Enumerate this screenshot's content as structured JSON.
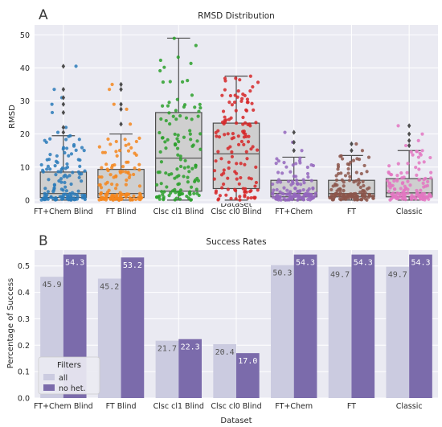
{
  "chart_data": [
    {
      "type": "box",
      "panel_letter": "A",
      "title": "RMSD Distribution",
      "xlabel": "Dataset",
      "ylabel": "RMSD",
      "ylim": [
        -1,
        53
      ],
      "yticks": [
        0,
        10,
        20,
        30,
        40,
        50
      ],
      "grid": true,
      "categories": [
        "FT+Chem Blind",
        "FT Blind",
        "Clsc cl1 Blind",
        "Clsc cl0 Blind",
        "FT+Chem",
        "FT",
        "Classic"
      ],
      "colors": [
        "#2b7bba",
        "#f5871f",
        "#2ca02c",
        "#d62728",
        "#9467bd",
        "#8c564b",
        "#e377c2"
      ],
      "box_stats": [
        {
          "q1": 0.8,
          "median": 2.0,
          "q3": 8.5,
          "whisker_low": 0.0,
          "whisker_high": 19.5,
          "outliers": [
            20.5,
            22.0,
            26.5,
            29.0,
            31.0,
            33.5,
            40.5
          ]
        },
        {
          "q1": 0.8,
          "median": 2.0,
          "q3": 9.3,
          "whisker_low": 0.0,
          "whisker_high": 20.0,
          "outliers": [
            23.0,
            27.5,
            29.0,
            33.5,
            35.0
          ]
        },
        {
          "q1": 2.7,
          "median": 12.7,
          "q3": 26.5,
          "whisker_low": 0.0,
          "whisker_high": 49.0,
          "outliers": []
        },
        {
          "q1": 3.5,
          "median": 14.0,
          "q3": 23.3,
          "whisker_low": 0.0,
          "whisker_high": 37.5,
          "outliers": []
        },
        {
          "q1": 1.0,
          "median": 2.0,
          "q3": 6.0,
          "whisker_low": 0.0,
          "whisker_high": 13.0,
          "outliers": [
            15.0,
            17.5,
            20.5
          ]
        },
        {
          "q1": 1.0,
          "median": 2.0,
          "q3": 6.0,
          "whisker_low": 0.0,
          "whisker_high": 13.5,
          "outliers": [
            15.0,
            17.0
          ]
        },
        {
          "q1": 1.0,
          "median": 2.2,
          "q3": 6.5,
          "whisker_low": 0.0,
          "whisker_high": 15.0,
          "outliers": [
            16.5,
            18.0,
            20.0,
            22.5
          ]
        }
      ]
    },
    {
      "type": "bar",
      "panel_letter": "B",
      "title": "Success Rates",
      "xlabel": "Dataset",
      "ylabel": "Percentage of Success",
      "ylim": [
        0,
        0.56
      ],
      "yticks": [
        0.0,
        0.1,
        0.2,
        0.3,
        0.4,
        0.5
      ],
      "grid": true,
      "categories": [
        "FT+Chem Blind",
        "FT Blind",
        "Clsc cl1 Blind",
        "Clsc cl0 Blind",
        "FT+Chem",
        "FT",
        "Classic"
      ],
      "legend": {
        "title": "Filters",
        "placement": "lower-left"
      },
      "series": [
        {
          "name": "all",
          "color": "#cbcbe0",
          "values": [
            0.459,
            0.452,
            0.217,
            0.204,
            0.503,
            0.497,
            0.497
          ],
          "labels": [
            "45.9",
            "45.2",
            "21.7",
            "20.4",
            "50.3",
            "49.7",
            "49.7"
          ]
        },
        {
          "name": "no het.",
          "color": "#7b6bab",
          "values": [
            0.543,
            0.532,
            0.223,
            0.17,
            0.543,
            0.543,
            0.543
          ],
          "labels": [
            "54.3",
            "53.2",
            "22.3",
            "17.0",
            "54.3",
            "54.3",
            "54.3"
          ]
        }
      ]
    }
  ]
}
